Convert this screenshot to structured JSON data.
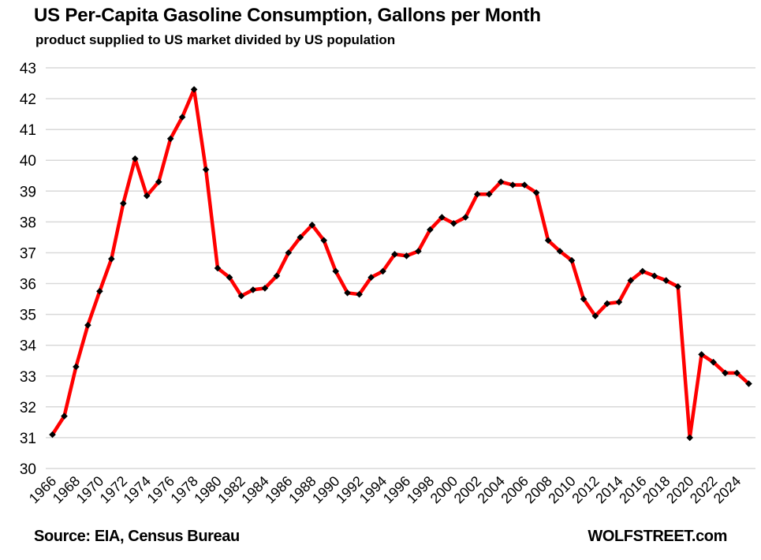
{
  "header": {
    "title": "US Per-Capita Gasoline Consumption, Gallons per Month",
    "subtitle": "product supplied to US market divided by US population"
  },
  "footer": {
    "source": "Source: EIA, Census Bureau",
    "brand": "WOLFSTREET.com"
  },
  "chart_data": {
    "type": "line",
    "title": "US Per-Capita Gasoline Consumption, Gallons per Month",
    "subtitle": "product supplied to US market divided by US population",
    "xlabel": "",
    "ylabel": "",
    "ylim": [
      30,
      43
    ],
    "ytick_step": 1,
    "xticks": [
      1966,
      1968,
      1970,
      1972,
      1974,
      1976,
      1978,
      1980,
      1982,
      1984,
      1986,
      1988,
      1990,
      1992,
      1994,
      1996,
      1998,
      2000,
      2002,
      2004,
      2006,
      2008,
      2010,
      2012,
      2014,
      2016,
      2018,
      2020,
      2022,
      2024
    ],
    "grid": "horizontal",
    "legend": "none",
    "marker": "diamond",
    "series": [
      {
        "name": "US per-capita gasoline consumption, gallons per month",
        "x": [
          1966,
          1967,
          1968,
          1969,
          1970,
          1971,
          1972,
          1973,
          1974,
          1975,
          1976,
          1977,
          1978,
          1979,
          1980,
          1981,
          1982,
          1983,
          1984,
          1985,
          1986,
          1987,
          1988,
          1989,
          1990,
          1991,
          1992,
          1993,
          1994,
          1995,
          1996,
          1997,
          1998,
          1999,
          2000,
          2001,
          2002,
          2003,
          2004,
          2005,
          2006,
          2007,
          2008,
          2009,
          2010,
          2011,
          2012,
          2013,
          2014,
          2015,
          2016,
          2017,
          2018,
          2019,
          2020,
          2021,
          2022,
          2023,
          2024,
          2025
        ],
        "values": [
          31.1,
          31.7,
          33.3,
          34.65,
          35.75,
          36.8,
          38.6,
          40.05,
          38.85,
          39.3,
          40.7,
          41.4,
          42.3,
          39.7,
          36.5,
          36.2,
          35.6,
          35.8,
          35.85,
          36.25,
          37.0,
          37.5,
          37.9,
          37.4,
          36.4,
          35.7,
          35.65,
          36.2,
          36.4,
          36.95,
          36.9,
          37.05,
          37.75,
          38.15,
          37.95,
          38.15,
          38.9,
          38.9,
          39.3,
          39.2,
          39.2,
          38.95,
          37.4,
          37.05,
          36.75,
          35.5,
          34.95,
          35.35,
          35.4,
          36.1,
          36.4,
          36.25,
          36.1,
          35.9,
          31.0,
          33.7,
          33.45,
          33.1,
          33.1,
          32.75
        ]
      }
    ],
    "colors": {
      "line": "#FF0000",
      "marker": "#000000",
      "gridline": "#D9D9D9",
      "text": "#000000",
      "background": "#FFFFFF"
    }
  }
}
